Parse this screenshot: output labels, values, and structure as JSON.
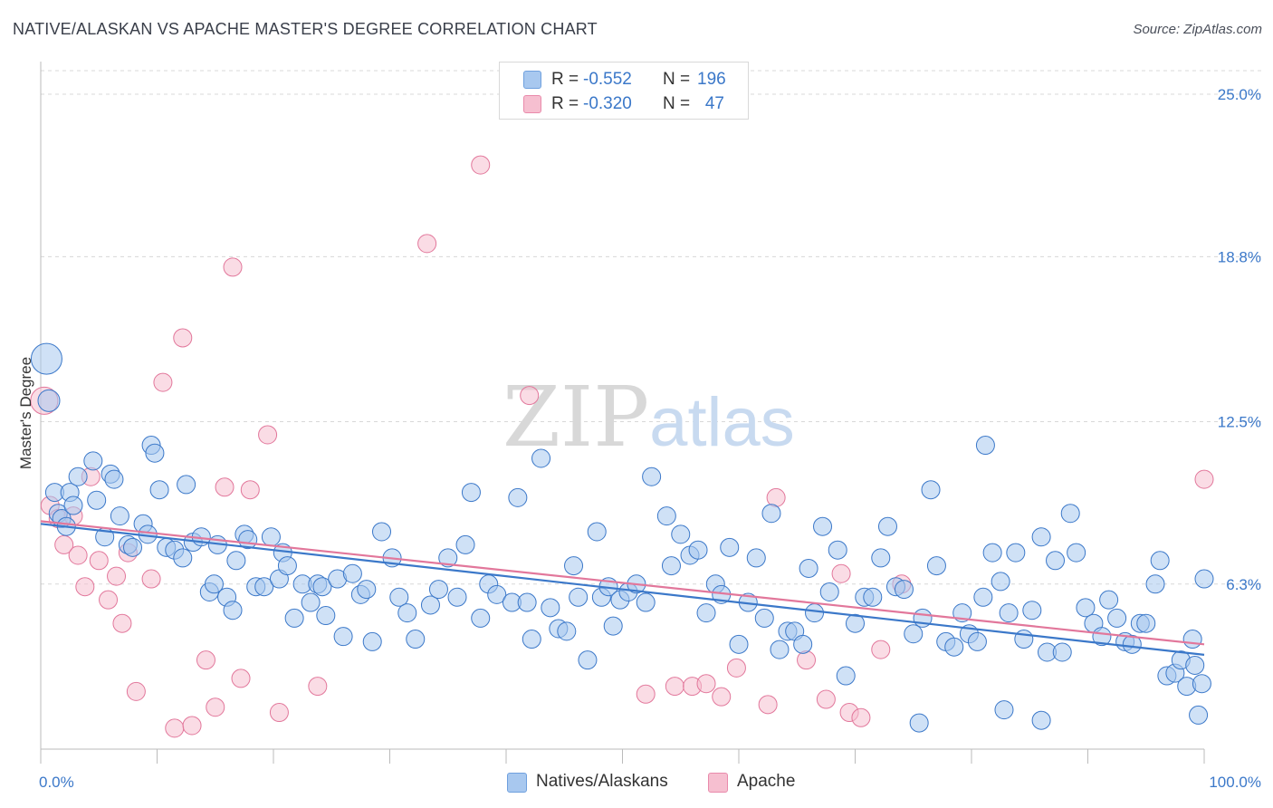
{
  "title": "NATIVE/ALASKAN VS APACHE MASTER'S DEGREE CORRELATION CHART",
  "source": "Source: ZipAtlas.com",
  "watermark": "ZIPatlas",
  "stats": [
    {
      "label": "R =",
      "r": "-0.552",
      "n_label": "N =",
      "n": "196"
    },
    {
      "label": "R =",
      "r": "-0.320",
      "n_label": "N =",
      "n": "47"
    }
  ],
  "legend": [
    "Natives/Alaskans",
    "Apache"
  ],
  "colors": {
    "blue": "#3b78c9",
    "blue_fill": "#a8c8ef",
    "pink": "#e2779b",
    "pink_fill": "#f6bfd0",
    "grid": "#d8d8d8",
    "tick": "#3b78c9"
  },
  "chart_data": {
    "type": "scatter",
    "ylabel": "Master's Degree",
    "xlim": [
      0,
      100
    ],
    "ylim": [
      0,
      25.9
    ],
    "x_ticks": [
      "0.0%",
      "100.0%"
    ],
    "y_ticks": [
      {
        "value": 6.3,
        "label": "6.3%"
      },
      {
        "value": 12.5,
        "label": "12.5%"
      },
      {
        "value": 18.8,
        "label": "18.8%"
      },
      {
        "value": 25.0,
        "label": "25.0%"
      }
    ],
    "series": [
      {
        "name": "Natives/Alaskans",
        "color": "#3b78c9",
        "trend": {
          "x": [
            0,
            100
          ],
          "y": [
            8.6,
            3.6
          ]
        },
        "points": [
          [
            0.5,
            14.9
          ],
          [
            0.7,
            13.3
          ],
          [
            1.2,
            9.8
          ],
          [
            1.5,
            9.0
          ],
          [
            1.8,
            8.8
          ],
          [
            2.2,
            8.5
          ],
          [
            2.5,
            9.8
          ],
          [
            2.8,
            9.3
          ],
          [
            3.2,
            10.4
          ],
          [
            4.5,
            11.0
          ],
          [
            4.8,
            9.5
          ],
          [
            5.5,
            8.1
          ],
          [
            6.0,
            10.5
          ],
          [
            6.3,
            10.3
          ],
          [
            6.8,
            8.9
          ],
          [
            7.5,
            7.8
          ],
          [
            7.9,
            7.7
          ],
          [
            8.8,
            8.6
          ],
          [
            9.2,
            8.2
          ],
          [
            9.5,
            11.6
          ],
          [
            9.8,
            11.3
          ],
          [
            10.2,
            9.9
          ],
          [
            10.8,
            7.7
          ],
          [
            11.5,
            7.6
          ],
          [
            12.2,
            7.3
          ],
          [
            12.5,
            10.1
          ],
          [
            13.1,
            7.9
          ],
          [
            13.8,
            8.1
          ],
          [
            14.5,
            6.0
          ],
          [
            14.9,
            6.3
          ],
          [
            15.2,
            7.8
          ],
          [
            16.0,
            5.8
          ],
          [
            16.5,
            5.3
          ],
          [
            16.8,
            7.2
          ],
          [
            17.5,
            8.2
          ],
          [
            17.8,
            8.0
          ],
          [
            18.5,
            6.2
          ],
          [
            19.2,
            6.2
          ],
          [
            19.8,
            8.1
          ],
          [
            20.5,
            6.5
          ],
          [
            20.8,
            7.5
          ],
          [
            21.2,
            7.0
          ],
          [
            21.8,
            5.0
          ],
          [
            22.5,
            6.3
          ],
          [
            23.2,
            5.6
          ],
          [
            23.8,
            6.3
          ],
          [
            24.2,
            6.2
          ],
          [
            24.5,
            5.1
          ],
          [
            25.5,
            6.5
          ],
          [
            26.0,
            4.3
          ],
          [
            26.8,
            6.7
          ],
          [
            27.5,
            5.9
          ],
          [
            28.0,
            6.1
          ],
          [
            28.5,
            4.1
          ],
          [
            29.3,
            8.3
          ],
          [
            30.2,
            7.3
          ],
          [
            30.8,
            5.8
          ],
          [
            31.5,
            5.2
          ],
          [
            32.2,
            4.2
          ],
          [
            33.5,
            5.5
          ],
          [
            34.2,
            6.1
          ],
          [
            35.0,
            7.3
          ],
          [
            35.8,
            5.8
          ],
          [
            36.5,
            7.8
          ],
          [
            37.0,
            9.8
          ],
          [
            37.8,
            5.0
          ],
          [
            38.5,
            6.3
          ],
          [
            39.2,
            5.9
          ],
          [
            40.5,
            5.6
          ],
          [
            41.0,
            9.6
          ],
          [
            41.8,
            5.6
          ],
          [
            42.2,
            4.2
          ],
          [
            43.0,
            11.1
          ],
          [
            43.8,
            5.4
          ],
          [
            44.5,
            4.6
          ],
          [
            45.2,
            4.5
          ],
          [
            45.8,
            7.0
          ],
          [
            46.2,
            5.8
          ],
          [
            47.0,
            3.4
          ],
          [
            47.8,
            8.3
          ],
          [
            48.2,
            5.8
          ],
          [
            48.8,
            6.2
          ],
          [
            49.2,
            4.7
          ],
          [
            49.8,
            5.7
          ],
          [
            50.5,
            6.0
          ],
          [
            51.2,
            6.3
          ],
          [
            52.0,
            5.6
          ],
          [
            52.5,
            10.4
          ],
          [
            53.8,
            8.9
          ],
          [
            54.2,
            7.0
          ],
          [
            55.0,
            8.2
          ],
          [
            55.8,
            7.4
          ],
          [
            56.5,
            7.6
          ],
          [
            57.2,
            5.2
          ],
          [
            58.0,
            6.3
          ],
          [
            58.5,
            5.9
          ],
          [
            59.2,
            7.7
          ],
          [
            60.0,
            4.0
          ],
          [
            60.8,
            5.6
          ],
          [
            61.5,
            7.3
          ],
          [
            62.2,
            5.0
          ],
          [
            62.8,
            9.0
          ],
          [
            63.5,
            3.8
          ],
          [
            64.2,
            4.5
          ],
          [
            64.8,
            4.5
          ],
          [
            65.5,
            4.0
          ],
          [
            66.0,
            6.9
          ],
          [
            66.5,
            5.2
          ],
          [
            67.2,
            8.5
          ],
          [
            67.8,
            6.0
          ],
          [
            68.5,
            7.6
          ],
          [
            69.2,
            2.8
          ],
          [
            70.0,
            4.8
          ],
          [
            70.8,
            5.8
          ],
          [
            71.5,
            5.8
          ],
          [
            72.2,
            7.3
          ],
          [
            72.8,
            8.5
          ],
          [
            73.5,
            6.2
          ],
          [
            74.2,
            6.1
          ],
          [
            75.0,
            4.4
          ],
          [
            75.8,
            5.0
          ],
          [
            76.5,
            9.9
          ],
          [
            77.0,
            7.0
          ],
          [
            77.8,
            4.1
          ],
          [
            78.5,
            3.9
          ],
          [
            79.2,
            5.2
          ],
          [
            79.8,
            4.4
          ],
          [
            80.5,
            4.1
          ],
          [
            81.0,
            5.8
          ],
          [
            81.8,
            7.5
          ],
          [
            82.5,
            6.4
          ],
          [
            83.2,
            5.2
          ],
          [
            83.8,
            7.5
          ],
          [
            84.5,
            4.2
          ],
          [
            85.2,
            5.3
          ],
          [
            86.0,
            8.1
          ],
          [
            86.5,
            3.7
          ],
          [
            87.2,
            7.2
          ],
          [
            87.8,
            3.7
          ],
          [
            88.5,
            9.0
          ],
          [
            89.0,
            7.5
          ],
          [
            89.8,
            5.4
          ],
          [
            90.5,
            4.8
          ],
          [
            91.2,
            4.3
          ],
          [
            91.8,
            5.7
          ],
          [
            92.5,
            5.0
          ],
          [
            93.2,
            4.1
          ],
          [
            93.8,
            4.0
          ],
          [
            94.5,
            4.8
          ],
          [
            95.0,
            4.8
          ],
          [
            95.8,
            6.3
          ],
          [
            96.2,
            7.2
          ],
          [
            96.8,
            2.8
          ],
          [
            97.5,
            2.9
          ],
          [
            98.0,
            3.4
          ],
          [
            98.5,
            2.4
          ],
          [
            99.0,
            4.2
          ],
          [
            99.2,
            3.2
          ],
          [
            99.5,
            1.3
          ],
          [
            99.8,
            2.5
          ],
          [
            100.0,
            6.5
          ],
          [
            86.0,
            1.1
          ],
          [
            82.8,
            1.5
          ],
          [
            81.2,
            11.6
          ],
          [
            75.5,
            1.0
          ]
        ]
      },
      {
        "name": "Apache",
        "color": "#e2779b",
        "trend": {
          "x": [
            0,
            100
          ],
          "y": [
            8.7,
            4.0
          ]
        },
        "points": [
          [
            0.3,
            13.3
          ],
          [
            0.8,
            9.3
          ],
          [
            1.5,
            8.8
          ],
          [
            2.0,
            7.8
          ],
          [
            2.8,
            8.9
          ],
          [
            3.2,
            7.4
          ],
          [
            3.8,
            6.2
          ],
          [
            4.3,
            10.4
          ],
          [
            5.0,
            7.2
          ],
          [
            5.8,
            5.7
          ],
          [
            6.5,
            6.6
          ],
          [
            7.0,
            4.8
          ],
          [
            7.5,
            7.5
          ],
          [
            8.2,
            2.2
          ],
          [
            9.5,
            6.5
          ],
          [
            10.5,
            14.0
          ],
          [
            11.5,
            0.8
          ],
          [
            12.2,
            15.7
          ],
          [
            13.0,
            0.9
          ],
          [
            14.2,
            3.4
          ],
          [
            15.0,
            1.6
          ],
          [
            15.8,
            10.0
          ],
          [
            16.5,
            18.4
          ],
          [
            17.2,
            2.7
          ],
          [
            18.0,
            9.9
          ],
          [
            19.5,
            12.0
          ],
          [
            20.5,
            1.4
          ],
          [
            23.8,
            2.4
          ],
          [
            33.2,
            19.3
          ],
          [
            37.8,
            22.3
          ],
          [
            42.0,
            13.5
          ],
          [
            52.0,
            2.1
          ],
          [
            54.5,
            2.4
          ],
          [
            56.0,
            2.4
          ],
          [
            57.2,
            2.5
          ],
          [
            58.5,
            2.0
          ],
          [
            59.8,
            3.1
          ],
          [
            62.5,
            1.7
          ],
          [
            63.2,
            9.6
          ],
          [
            65.8,
            3.4
          ],
          [
            67.5,
            1.9
          ],
          [
            68.8,
            6.7
          ],
          [
            69.5,
            1.4
          ],
          [
            70.5,
            1.2
          ],
          [
            72.2,
            3.8
          ],
          [
            74.0,
            6.3
          ],
          [
            100.0,
            10.3
          ]
        ]
      }
    ]
  }
}
